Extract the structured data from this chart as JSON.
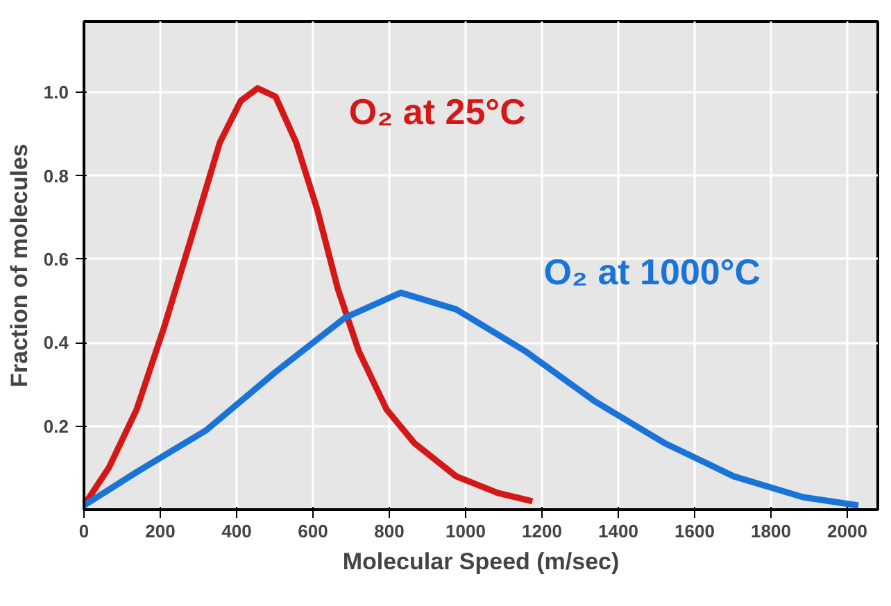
{
  "chart_data": {
    "type": "line",
    "xlabel": "Molecular Speed (m/sec)",
    "ylabel": "Fraction of molecules",
    "xlim": [
      0,
      2080
    ],
    "ylim": [
      0,
      1.17
    ],
    "xticks": [
      0,
      200,
      400,
      600,
      800,
      1000,
      1200,
      1400,
      1600,
      1800,
      2000
    ],
    "yticks": [
      0.2,
      0.4,
      0.6,
      0.8,
      {
        "value": 1.0,
        "label": "1.0"
      }
    ],
    "grid": true,
    "marker": "none",
    "line_style": "solid",
    "series": [
      {
        "name": "O₂ at 25°C",
        "color": "#d41818",
        "x": [
          0,
          65,
          138,
          211,
          284,
          356,
          411,
          455,
          502,
          556,
          611,
          665,
          720,
          793,
          865,
          975,
          1084,
          1175
        ],
        "values": [
          0.01,
          0.1,
          0.24,
          0.44,
          0.66,
          0.88,
          0.98,
          1.01,
          0.99,
          0.88,
          0.72,
          0.53,
          0.38,
          0.24,
          0.16,
          0.08,
          0.04,
          0.02
        ]
      },
      {
        "name": "O₂ at 1000°C",
        "color": "#1a74d8",
        "x": [
          0,
          138,
          320,
          502,
          684,
          830,
          975,
          1156,
          1338,
          1520,
          1702,
          1884,
          2029
        ],
        "values": [
          0.01,
          0.09,
          0.19,
          0.33,
          0.46,
          0.52,
          0.48,
          0.38,
          0.26,
          0.16,
          0.08,
          0.03,
          0.01
        ]
      }
    ]
  }
}
